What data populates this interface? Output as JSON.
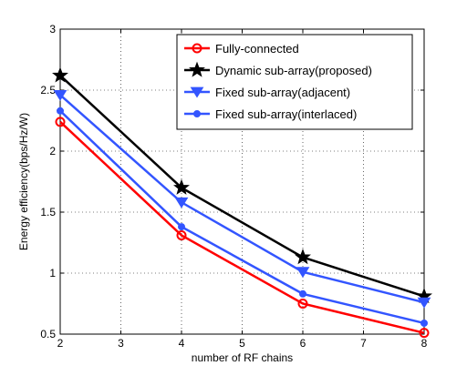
{
  "chart_data": {
    "type": "line",
    "xlabel": "number of RF chains",
    "ylabel": "Energy efficiency(bps/Hz/W)",
    "xlim": [
      2,
      8
    ],
    "ylim": [
      0.5,
      3
    ],
    "xticks": [
      "2",
      "3",
      "4",
      "5",
      "6",
      "7",
      "8"
    ],
    "yticks": [
      "0.5",
      "1",
      "1.5",
      "2",
      "2.5",
      "3"
    ],
    "grid": true,
    "legend_position": "top-right",
    "x": [
      2,
      4,
      6,
      8
    ],
    "series": [
      {
        "name": "Fully-connected",
        "values": [
          2.24,
          1.31,
          0.75,
          0.51
        ],
        "color": "#ff0000",
        "marker": "circle-open"
      },
      {
        "name": "Dynamic sub-array(proposed)",
        "values": [
          2.62,
          1.7,
          1.13,
          0.81
        ],
        "color": "#000000",
        "marker": "star"
      },
      {
        "name": "Fixed sub-array(adjacent)",
        "values": [
          2.46,
          1.58,
          1.01,
          0.76
        ],
        "color": "#3355ff",
        "marker": "triangle-down"
      },
      {
        "name": "Fixed sub-array(interlaced)",
        "values": [
          2.33,
          1.38,
          0.83,
          0.59
        ],
        "color": "#3355ff",
        "marker": "dot"
      }
    ]
  }
}
